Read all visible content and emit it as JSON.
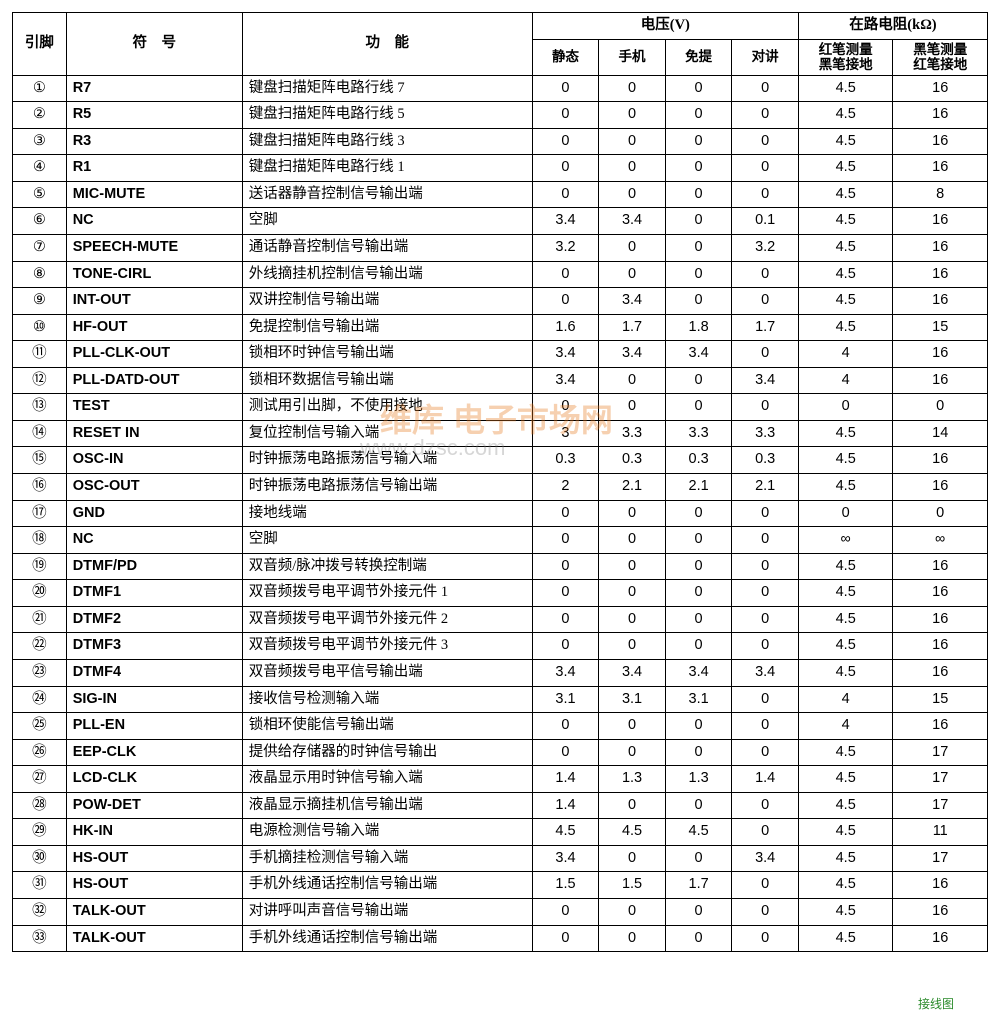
{
  "header": {
    "pin": "引脚",
    "symbol": "符　号",
    "function": "功　能",
    "voltage_group": "电压(V)",
    "resistance_group": "在路电阻(kΩ)",
    "v_cols": [
      "静态",
      "手机",
      "免提",
      "对讲"
    ],
    "r_cols": [
      "红笔测量\n黑笔接地",
      "黑笔测量\n红笔接地"
    ]
  },
  "rows": [
    {
      "pin": "①",
      "sym": "R7",
      "func": "键盘扫描矩阵电路行线 7",
      "v": [
        "0",
        "0",
        "0",
        "0"
      ],
      "r": [
        "4.5",
        "16"
      ]
    },
    {
      "pin": "②",
      "sym": "R5",
      "func": "键盘扫描矩阵电路行线 5",
      "v": [
        "0",
        "0",
        "0",
        "0"
      ],
      "r": [
        "4.5",
        "16"
      ]
    },
    {
      "pin": "③",
      "sym": "R3",
      "func": "键盘扫描矩阵电路行线 3",
      "v": [
        "0",
        "0",
        "0",
        "0"
      ],
      "r": [
        "4.5",
        "16"
      ]
    },
    {
      "pin": "④",
      "sym": "R1",
      "func": "键盘扫描矩阵电路行线 1",
      "v": [
        "0",
        "0",
        "0",
        "0"
      ],
      "r": [
        "4.5",
        "16"
      ]
    },
    {
      "pin": "⑤",
      "sym": "MIC-MUTE",
      "func": "送话器静音控制信号输出端",
      "v": [
        "0",
        "0",
        "0",
        "0"
      ],
      "r": [
        "4.5",
        "8"
      ]
    },
    {
      "pin": "⑥",
      "sym": "NC",
      "func": "空脚",
      "v": [
        "3.4",
        "3.4",
        "0",
        "0.1"
      ],
      "r": [
        "4.5",
        "16"
      ]
    },
    {
      "pin": "⑦",
      "sym": "SPEECH-MUTE",
      "func": "通话静音控制信号输出端",
      "v": [
        "3.2",
        "0",
        "0",
        "3.2"
      ],
      "r": [
        "4.5",
        "16"
      ]
    },
    {
      "pin": "⑧",
      "sym": "TONE-CIRL",
      "func": "外线摘挂机控制信号输出端",
      "v": [
        "0",
        "0",
        "0",
        "0"
      ],
      "r": [
        "4.5",
        "16"
      ]
    },
    {
      "pin": "⑨",
      "sym": "INT-OUT",
      "func": "双讲控制信号输出端",
      "v": [
        "0",
        "3.4",
        "0",
        "0"
      ],
      "r": [
        "4.5",
        "16"
      ]
    },
    {
      "pin": "⑩",
      "sym": "HF-OUT",
      "func": "免提控制信号输出端",
      "v": [
        "1.6",
        "1.7",
        "1.8",
        "1.7"
      ],
      "r": [
        "4.5",
        "15"
      ]
    },
    {
      "pin": "⑪",
      "sym": "PLL-CLK-OUT",
      "func": "锁相环时钟信号输出端",
      "v": [
        "3.4",
        "3.4",
        "3.4",
        "0"
      ],
      "r": [
        "4",
        "16"
      ]
    },
    {
      "pin": "⑫",
      "sym": "PLL-DATD-OUT",
      "func": "锁相环数据信号输出端",
      "v": [
        "3.4",
        "0",
        "0",
        "3.4"
      ],
      "r": [
        "4",
        "16"
      ]
    },
    {
      "pin": "⑬",
      "sym": "TEST",
      "func": "测试用引出脚，不使用接地",
      "v": [
        "0",
        "0",
        "0",
        "0"
      ],
      "r": [
        "0",
        "0"
      ]
    },
    {
      "pin": "⑭",
      "sym": "RESET IN",
      "func": "复位控制信号输入端",
      "v": [
        "3",
        "3.3",
        "3.3",
        "3.3"
      ],
      "r": [
        "4.5",
        "14"
      ]
    },
    {
      "pin": "⑮",
      "sym": "OSC-IN",
      "func": "时钟振荡电路振荡信号输入端",
      "v": [
        "0.3",
        "0.3",
        "0.3",
        "0.3"
      ],
      "r": [
        "4.5",
        "16"
      ]
    },
    {
      "pin": "⑯",
      "sym": "OSC-OUT",
      "func": "时钟振荡电路振荡信号输出端",
      "v": [
        "2",
        "2.1",
        "2.1",
        "2.1"
      ],
      "r": [
        "4.5",
        "16"
      ]
    },
    {
      "pin": "⑰",
      "sym": "GND",
      "func": "接地线端",
      "v": [
        "0",
        "0",
        "0",
        "0"
      ],
      "r": [
        "0",
        "0"
      ]
    },
    {
      "pin": "⑱",
      "sym": "NC",
      "func": "空脚",
      "v": [
        "0",
        "0",
        "0",
        "0"
      ],
      "r": [
        "∞",
        "∞"
      ]
    },
    {
      "pin": "⑲",
      "sym": "DTMF/PD",
      "func": "双音频/脉冲拨号转换控制端",
      "v": [
        "0",
        "0",
        "0",
        "0"
      ],
      "r": [
        "4.5",
        "16"
      ]
    },
    {
      "pin": "⑳",
      "sym": "DTMF1",
      "func": "双音频拨号电平调节外接元件 1",
      "v": [
        "0",
        "0",
        "0",
        "0"
      ],
      "r": [
        "4.5",
        "16"
      ]
    },
    {
      "pin": "㉑",
      "sym": "DTMF2",
      "func": "双音频拨号电平调节外接元件 2",
      "v": [
        "0",
        "0",
        "0",
        "0"
      ],
      "r": [
        "4.5",
        "16"
      ]
    },
    {
      "pin": "㉒",
      "sym": "DTMF3",
      "func": "双音频拨号电平调节外接元件 3",
      "v": [
        "0",
        "0",
        "0",
        "0"
      ],
      "r": [
        "4.5",
        "16"
      ]
    },
    {
      "pin": "㉓",
      "sym": "DTMF4",
      "func": "双音频拨号电平信号输出端",
      "v": [
        "3.4",
        "3.4",
        "3.4",
        "3.4"
      ],
      "r": [
        "4.5",
        "16"
      ]
    },
    {
      "pin": "㉔",
      "sym": "SIG-IN",
      "func": "接收信号检测输入端",
      "v": [
        "3.1",
        "3.1",
        "3.1",
        "0"
      ],
      "r": [
        "4",
        "15"
      ]
    },
    {
      "pin": "㉕",
      "sym": "PLL-EN",
      "func": "锁相环使能信号输出端",
      "v": [
        "0",
        "0",
        "0",
        "0"
      ],
      "r": [
        "4",
        "16"
      ]
    },
    {
      "pin": "㉖",
      "sym": "EEP-CLK",
      "func": "提供给存储器的时钟信号输出",
      "v": [
        "0",
        "0",
        "0",
        "0"
      ],
      "r": [
        "4.5",
        "17"
      ]
    },
    {
      "pin": "㉗",
      "sym": "LCD-CLK",
      "func": "液晶显示用时钟信号输入端",
      "v": [
        "1.4",
        "1.3",
        "1.3",
        "1.4"
      ],
      "r": [
        "4.5",
        "17"
      ]
    },
    {
      "pin": "㉘",
      "sym": "POW-DET",
      "func": "液晶显示摘挂机信号输出端",
      "v": [
        "1.4",
        "0",
        "0",
        "0"
      ],
      "r": [
        "4.5",
        "17"
      ]
    },
    {
      "pin": "㉙",
      "sym": "HK-IN",
      "func": "电源检测信号输入端",
      "v": [
        "4.5",
        "4.5",
        "4.5",
        "0"
      ],
      "r": [
        "4.5",
        "11"
      ]
    },
    {
      "pin": "㉚",
      "sym": "HS-OUT",
      "func": "手机摘挂检测信号输入端",
      "v": [
        "3.4",
        "0",
        "0",
        "3.4"
      ],
      "r": [
        "4.5",
        "17"
      ]
    },
    {
      "pin": "㉛",
      "sym": "HS-OUT",
      "func": "手机外线通话控制信号输出端",
      "v": [
        "1.5",
        "1.5",
        "1.7",
        "0"
      ],
      "r": [
        "4.5",
        "16"
      ]
    },
    {
      "pin": "㉜",
      "sym": "TALK-OUT",
      "func": "对讲呼叫声音信号输出端",
      "v": [
        "0",
        "0",
        "0",
        "0"
      ],
      "r": [
        "4.5",
        "16"
      ]
    },
    {
      "pin": "㉝",
      "sym": "TALK-OUT",
      "func": "手机外线通话控制信号输出端",
      "v": [
        "0",
        "0",
        "0",
        "0"
      ],
      "r": [
        "4.5",
        "16"
      ]
    }
  ],
  "watermark": {
    "line1": "维库 电子市场网",
    "line2": "www.dzsc.com"
  },
  "corner": "接线图"
}
